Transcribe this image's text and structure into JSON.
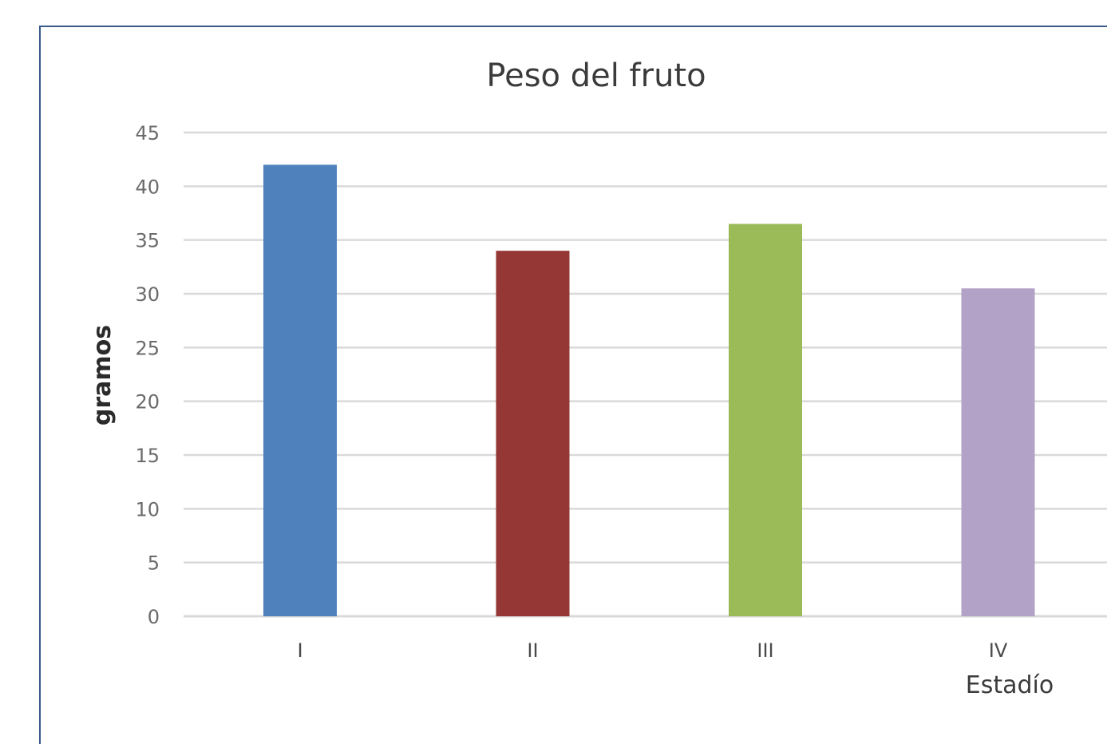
{
  "chart_data": {
    "type": "bar",
    "title": "Peso del fruto",
    "xlabel": "Estadío",
    "ylabel": "gramos",
    "categories": [
      "I",
      "II",
      "III",
      "IV"
    ],
    "values": [
      42.0,
      34.0,
      36.5,
      30.5
    ],
    "colors": [
      "#4f81bd",
      "#953735",
      "#9bbb59",
      "#b3a2c7"
    ],
    "ylim": [
      0,
      45
    ],
    "yticks": [
      0,
      5,
      10,
      15,
      20,
      25,
      30,
      35,
      40,
      45
    ],
    "grid": true,
    "gridline_color": "#d9d9d9",
    "legend": "none"
  }
}
